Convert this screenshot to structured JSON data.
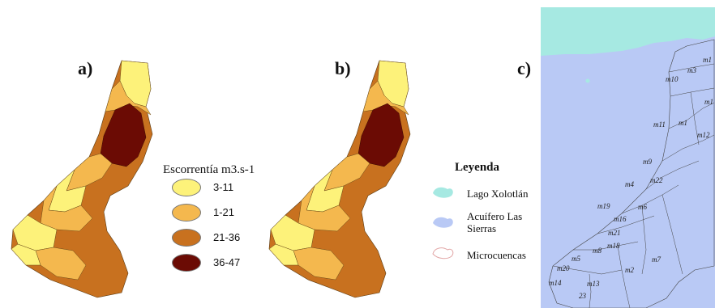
{
  "panels": {
    "a": {
      "label": "a)"
    },
    "b": {
      "label": "b)"
    },
    "c": {
      "label": "c)"
    }
  },
  "runoff_legend": {
    "title": "Escorrentía m3.s-1",
    "classes": [
      {
        "label": "3-11",
        "color": "#fdf27a"
      },
      {
        "label": "1-21",
        "color": "#f4b84e"
      },
      {
        "label": "21-36",
        "color": "#c8711f"
      },
      {
        "label": "36-47",
        "color": "#6b0b04"
      }
    ]
  },
  "map_legend": {
    "title": "Leyenda",
    "items": [
      {
        "label": "Lago Xolotlán",
        "color": "#a6e9e2"
      },
      {
        "label": "Acuífero Las Sierras",
        "color": "#b9c9f5"
      },
      {
        "label": "Microcuencas",
        "color": "#e2a6a6"
      }
    ]
  },
  "microbasins": [
    "m1",
    "m3",
    "m10",
    "m1",
    "m11",
    "m1",
    "m12",
    "m9",
    "m22",
    "m4",
    "m19",
    "m6",
    "m16",
    "m21",
    "m18",
    "m8",
    "m7",
    "m5",
    "m20",
    "m2",
    "m14",
    "m13",
    "23"
  ]
}
